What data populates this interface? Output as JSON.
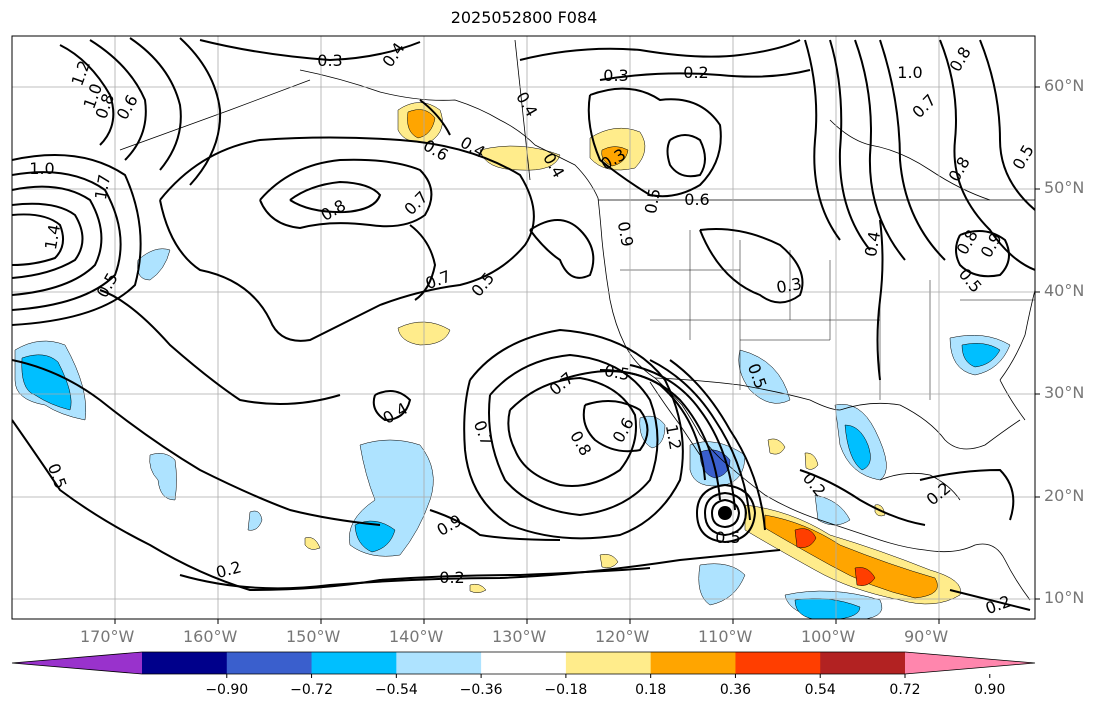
{
  "title": "2025052800 F084",
  "map": {
    "projection": "PlateCarree",
    "extent": {
      "lon_min": -180,
      "lon_max": -81,
      "lat_min": 8,
      "lat_max": 65
    },
    "grid": true,
    "lat_labels": [
      "10°N",
      "20°N",
      "30°N",
      "40°N",
      "50°N",
      "60°N"
    ],
    "lon_labels": [
      "170°W",
      "160°W",
      "150°W",
      "140°W",
      "130°W",
      "120°W",
      "110°W",
      "100°W",
      "90°W"
    ],
    "contour_labels": [
      "0.3",
      "0.4",
      "0.2",
      "1.2",
      "1.0",
      "0.8",
      "0.6",
      "1.0",
      "0.3",
      "0.6",
      "0.4",
      "0.4",
      "0.3",
      "0.5",
      "0.6",
      "0.7",
      "0.8",
      "0.8",
      "0.7",
      "1.4",
      "1.7",
      "0.5",
      "0.7",
      "0.5",
      "0.4",
      "0.3",
      "0.5",
      "0.8",
      "0.9",
      "0.7",
      "0.5",
      "0.4",
      "0.5",
      "0.7",
      "0.8",
      "0.6",
      "1.2",
      "0.9",
      "0.5",
      "0.2",
      "0.2",
      "0.2",
      "0.2",
      "0.4",
      "0.2",
      "0.5",
      "0.9",
      "1.0",
      "0.8",
      "0.5"
    ]
  },
  "colorbar": {
    "colors": [
      "#9932cc",
      "#00008b",
      "#3a5fcd",
      "#00bfff",
      "#aee3ff",
      "#ffffff",
      "#ffec8b",
      "#ffa500",
      "#ff3e00",
      "#b22222",
      "#ff86ad"
    ],
    "ticks": [
      "−0.90",
      "−0.72",
      "−0.54",
      "−0.36",
      "−0.18",
      "0.18",
      "0.36",
      "0.54",
      "0.72",
      "0.90"
    ],
    "extend": "both"
  }
}
